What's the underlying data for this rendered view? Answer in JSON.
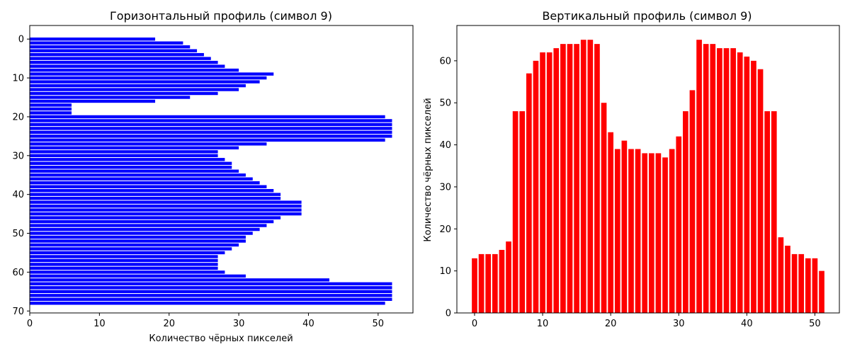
{
  "chart_data": [
    {
      "type": "bar",
      "orientation": "horizontal",
      "title": "Горизонтальный профиль (символ 9)",
      "xlabel": "Количество чёрных пикселей",
      "ylabel": "",
      "color": "#0000ff",
      "xlim": [
        0,
        55
      ],
      "ylim": [
        70.5,
        -3.5
      ],
      "xticks": [
        0,
        10,
        20,
        30,
        40,
        50
      ],
      "yticks": [
        0,
        10,
        20,
        30,
        40,
        50,
        60,
        70
      ],
      "values": [
        18,
        22,
        23,
        24,
        25,
        26,
        27,
        28,
        30,
        35,
        34,
        33,
        31,
        30,
        27,
        23,
        18,
        6,
        6,
        6,
        51,
        52,
        52,
        52,
        52,
        52,
        51,
        34,
        30,
        27,
        27,
        28,
        29,
        29,
        30,
        31,
        32,
        33,
        34,
        35,
        36,
        36,
        39,
        39,
        39,
        39,
        36,
        35,
        34,
        33,
        32,
        31,
        31,
        30,
        29,
        28,
        27,
        27,
        27,
        27,
        28,
        31,
        43,
        52,
        52,
        52,
        52,
        52,
        51
      ]
    },
    {
      "type": "bar",
      "orientation": "vertical",
      "title": "Вертикальный профиль (символ 9)",
      "xlabel": "",
      "ylabel": "Количество чёрных пикселей",
      "color": "#ff0000",
      "xlim": [
        -2.6,
        53.6
      ],
      "ylim": [
        0,
        68.4
      ],
      "xticks": [
        0,
        10,
        20,
        30,
        40,
        50
      ],
      "yticks": [
        0,
        10,
        20,
        30,
        40,
        50,
        60
      ],
      "values": [
        13,
        14,
        14,
        14,
        15,
        17,
        48,
        48,
        57,
        60,
        62,
        62,
        63,
        64,
        64,
        64,
        65,
        65,
        64,
        50,
        43,
        39,
        41,
        39,
        39,
        38,
        38,
        38,
        37,
        39,
        42,
        48,
        53,
        65,
        64,
        64,
        63,
        63,
        63,
        62,
        61,
        60,
        58,
        48,
        48,
        18,
        16,
        14,
        14,
        13,
        13,
        10
      ]
    }
  ]
}
